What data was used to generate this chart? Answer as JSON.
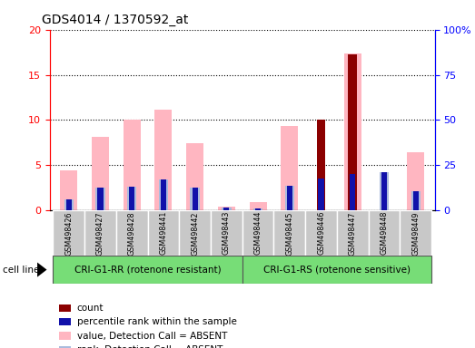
{
  "title": "GDS4014 / 1370592_at",
  "samples": [
    "GSM498426",
    "GSM498427",
    "GSM498428",
    "GSM498441",
    "GSM498442",
    "GSM498443",
    "GSM498444",
    "GSM498445",
    "GSM498446",
    "GSM498447",
    "GSM498448",
    "GSM498449"
  ],
  "group1_count": 6,
  "group2_count": 6,
  "group1_label": "CRI-G1-RR (rotenone resistant)",
  "group2_label": "CRI-G1-RS (rotenone sensitive)",
  "cell_line_label": "cell line",
  "count_values": [
    0,
    0,
    0,
    0,
    0,
    0,
    0,
    0,
    10.0,
    17.3,
    0,
    0
  ],
  "rank_values": [
    1.2,
    2.5,
    2.6,
    3.4,
    2.5,
    0.3,
    0.2,
    2.7,
    3.5,
    4.0,
    4.2,
    2.1
  ],
  "value_absent": [
    4.4,
    8.1,
    10.0,
    11.1,
    7.4,
    0.4,
    0.9,
    9.3,
    0.0,
    17.4,
    0.0,
    6.4
  ],
  "rank_absent_vals": [
    1.2,
    2.5,
    2.6,
    3.4,
    2.5,
    0.3,
    0.2,
    2.7,
    0.0,
    0.0,
    4.2,
    2.1
  ],
  "ylim_left": [
    0,
    20
  ],
  "ylim_right": [
    0,
    100
  ],
  "yticks_left": [
    0,
    5,
    10,
    15,
    20
  ],
  "yticks_right": [
    0,
    25,
    50,
    75,
    100
  ],
  "color_count": "#8B0000",
  "color_rank": "#1111AA",
  "color_value_absent": "#FFB6C1",
  "color_rank_absent": "#AABBDD",
  "bg_plot": "#ffffff",
  "bg_sample": "#C8C8C8",
  "bg_group": "#77DD77",
  "legend_items": [
    "count",
    "percentile rank within the sample",
    "value, Detection Call = ABSENT",
    "rank, Detection Call = ABSENT"
  ],
  "legend_colors": [
    "#8B0000",
    "#1111AA",
    "#FFB6C1",
    "#AABBDD"
  ]
}
